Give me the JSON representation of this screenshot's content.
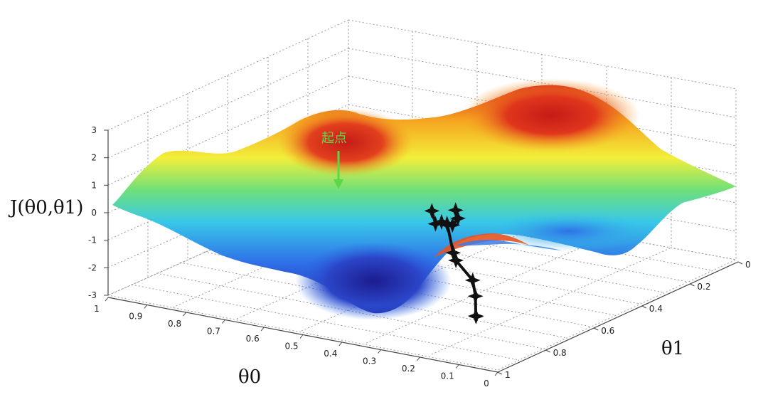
{
  "chart_data": {
    "type": "surface",
    "title": "",
    "xlabel": "θ0",
    "ylabel": "θ1",
    "zlabel": "J(θ0,θ1)",
    "xlim": [
      0,
      1
    ],
    "ylim": [
      0,
      1
    ],
    "zlim": [
      -3,
      3
    ],
    "x_ticks": [
      "1",
      "0.9",
      "0.8",
      "0.7",
      "0.6",
      "0.5",
      "0.4",
      "0.3",
      "0.2",
      "0.1",
      "0"
    ],
    "y_ticks": [
      "0",
      "0.2",
      "0.4",
      "0.6",
      "0.8",
      "1"
    ],
    "z_ticks": [
      "3",
      "2",
      "1",
      "0",
      "-1",
      "-2",
      "-3"
    ],
    "grid": true,
    "colormap": [
      "#1f1f9f",
      "#2f6fe8",
      "#38c8e8",
      "#6fe07a",
      "#f2ef3a",
      "#f5a21f",
      "#d8241c"
    ],
    "annotation": {
      "text": "起点",
      "color": "#5ed64a"
    },
    "series": [
      {
        "name": "",
        "points": [
          {
            "x": 0.84,
            "y": 0.05,
            "z": 2.0
          },
          {
            "x": 0.83,
            "y": 0.09,
            "z": 0.8
          },
          {
            "x": 0.8,
            "y": 0.15,
            "z": 0.2
          },
          {
            "x": 0.8,
            "y": 0.22,
            "z": -0.8
          },
          {
            "x": 0.77,
            "y": 0.28,
            "z": -1.7
          },
          {
            "x": 0.74,
            "y": 0.33,
            "z": -2.7
          },
          {
            "x": 0.71,
            "y": 0.38,
            "z": -3.0
          }
        ]
      },
      {
        "name": "",
        "points": [
          {
            "x": 0.8,
            "y": 0.05,
            "z": 2.4
          },
          {
            "x": 0.76,
            "y": 0.13,
            "z": 1.5
          },
          {
            "x": 0.72,
            "y": 0.22,
            "z": 1.1
          },
          {
            "x": 0.66,
            "y": 0.34,
            "z": 0.4
          },
          {
            "x": 0.6,
            "y": 0.46,
            "z": -0.3
          },
          {
            "x": 0.54,
            "y": 0.58,
            "z": -0.7
          },
          {
            "x": 0.46,
            "y": 0.7,
            "z": -1.1
          }
        ]
      }
    ]
  }
}
